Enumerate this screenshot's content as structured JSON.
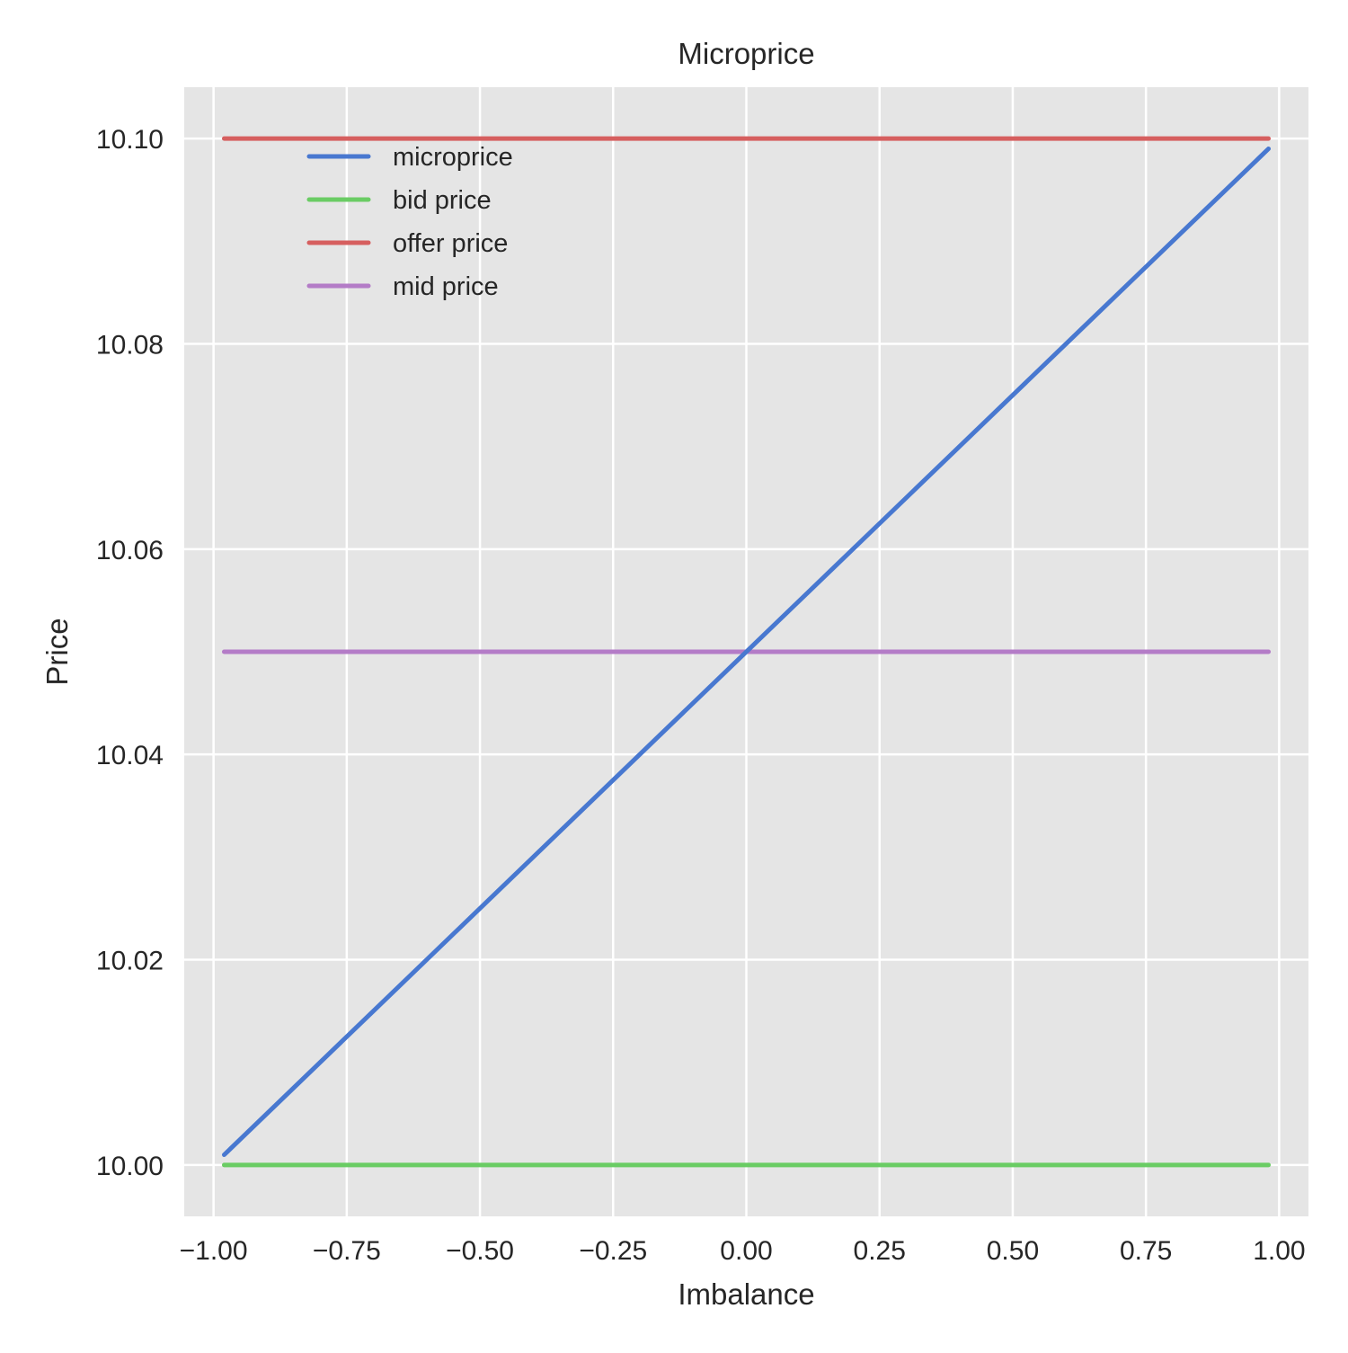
{
  "chart_data": {
    "type": "line",
    "title": "Microprice",
    "xlabel": "Imbalance",
    "ylabel": "Price",
    "xlim": [
      -1.055,
      1.055
    ],
    "ylim": [
      9.995,
      10.105
    ],
    "x_ticks": [
      -1.0,
      -0.75,
      -0.5,
      -0.25,
      0.0,
      0.25,
      0.5,
      0.75,
      1.0
    ],
    "x_tick_labels": [
      "−1.00",
      "−0.75",
      "−0.50",
      "−0.25",
      "0.00",
      "0.25",
      "0.50",
      "0.75",
      "1.00"
    ],
    "y_ticks": [
      10.0,
      10.02,
      10.04,
      10.06,
      10.08,
      10.1
    ],
    "y_tick_labels": [
      "10.00",
      "10.02",
      "10.04",
      "10.06",
      "10.08",
      "10.10"
    ],
    "grid": true,
    "legend_position": "upper-left",
    "series": [
      {
        "name": "microprice",
        "color": "#4878d0",
        "x": [
          -0.98,
          0.98
        ],
        "y": [
          10.001,
          10.099
        ]
      },
      {
        "name": "bid price",
        "color": "#6acc64",
        "x": [
          -0.98,
          0.98
        ],
        "y": [
          10.0,
          10.0
        ]
      },
      {
        "name": "offer price",
        "color": "#d65f5f",
        "x": [
          -0.98,
          0.98
        ],
        "y": [
          10.1,
          10.1
        ]
      },
      {
        "name": "mid price",
        "color": "#b47cc7",
        "x": [
          -0.98,
          0.98
        ],
        "y": [
          10.05,
          10.05
        ]
      }
    ]
  },
  "colors": {
    "plot_background": "#e5e5e5",
    "grid": "#ffffff",
    "text": "#262626"
  }
}
